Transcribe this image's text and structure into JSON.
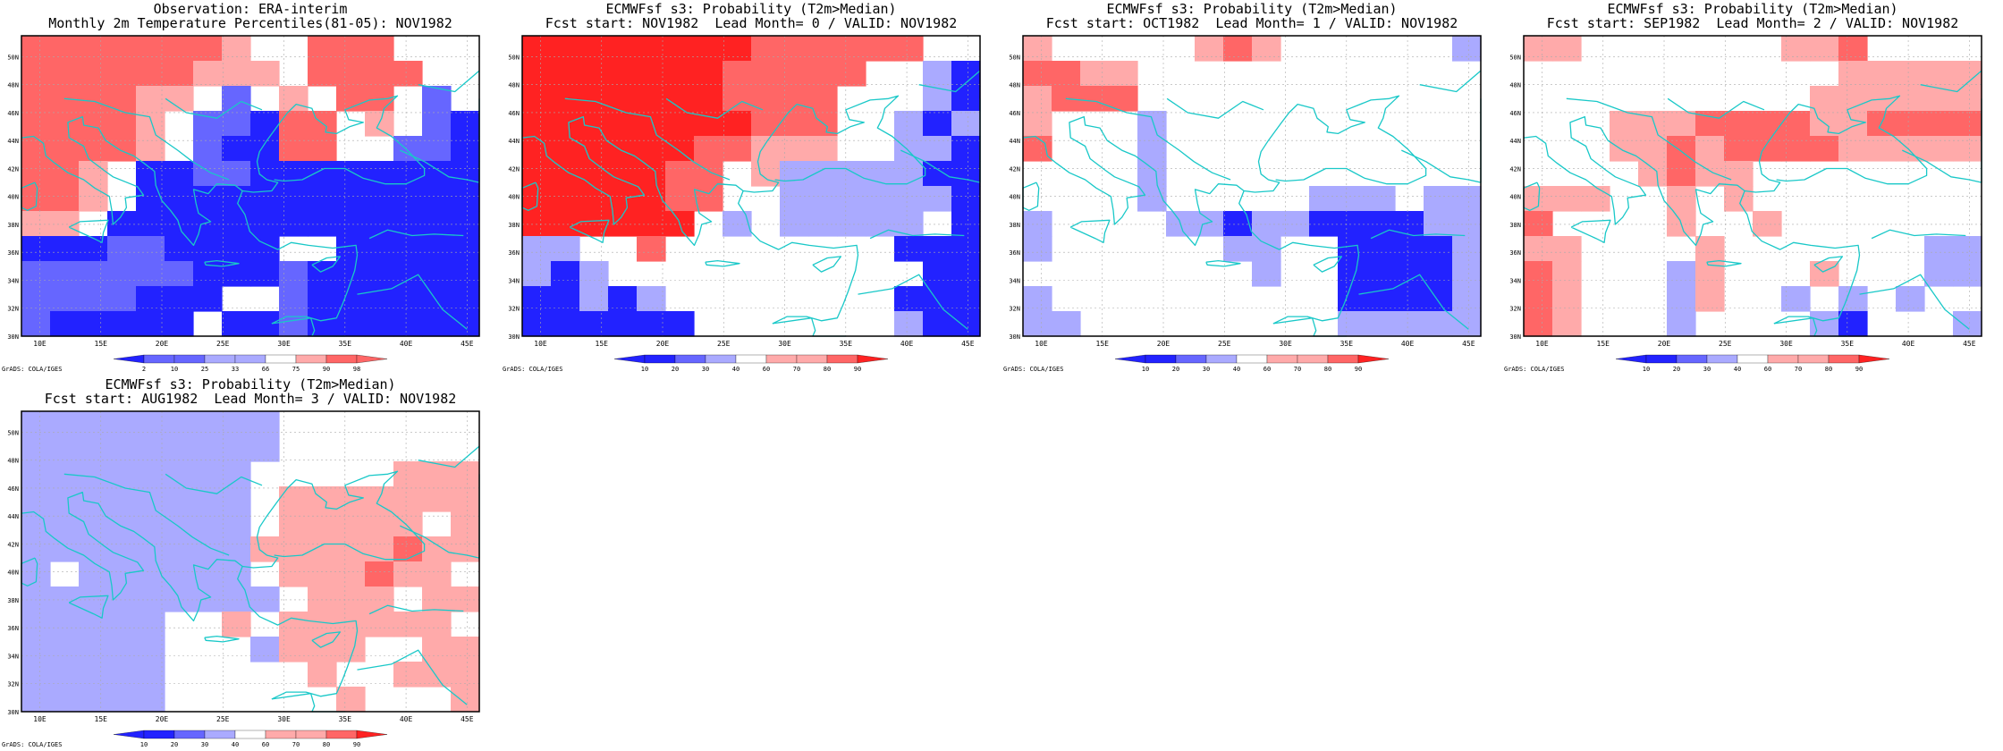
{
  "panels": [
    {
      "title1": "Observation: ERA-interim",
      "title2": "Monthly 2m Temperature Percentiles(81-05): NOV1982",
      "colorbar": {
        "labels": [
          "2",
          "10",
          "25",
          "33",
          "66",
          "75",
          "90",
          "98"
        ]
      },
      "credit": "GrADS: COLA/IGES",
      "grid": [
        "ooooooow..ooo...",
        "oooooowww.oooo..",
        "ooooww.b.w.oo.b.",
        "oooow.bbBoo.w.bB",
        "oooow.bBBoo..bbB",
        "oow.BBbbBBBBBBBB",
        "oow.BBBBBBBBBBBB",
        "ww.BBBBBBBBBBBBB",
        "BBBbbBBBB..BBBBB",
        "bbbbbbBBBbBBBBBB",
        "bbbbBBB..bBBBBBB",
        "bBBBBB.BBbBBBBBB"
      ]
    },
    {
      "title1": "ECMWFsf s3: Probability (T2m>Median)",
      "title2": "Fcst start: NOV1982  Lead Month= 0 / VALID: NOV1982",
      "colorbar": {
        "labels": [
          "10",
          "20",
          "30",
          "40",
          "60",
          "70",
          "80",
          "90"
        ]
      },
      "credit": "GrADS: COLA/IGES",
      "grid": [
        "RRRRRRRRoooooo..",
        "RRRRRRRooooo..bB",
        "RRRRRRRoooo...bB",
        "RRRRRRRRooo..bBb",
        "RRRRRRoowww..bbB",
        "RRRRRoo.wbbbbbBB",
        "RRRRRoo..bbbbbbB",
        "RRRRRR.b.bbbbb.B",
        "bb..o........BBB",
        "bBb...........BB",
        "BBbBb........BBB",
        "BBBBBB.......bBB"
      ]
    },
    {
      "title1": "ECMWFsf s3: Probability (T2m>Median)",
      "title2": "Fcst start: OCT1982  Lead Month= 1 / VALID: NOV1982",
      "colorbar": {
        "labels": [
          "10",
          "20",
          "30",
          "40",
          "60",
          "70",
          "80",
          "90"
        ]
      },
      "credit": "GrADS: COLA/IGES",
      "grid": [
        "w.....wow......b",
        "ooww............",
        "wooo............",
        "w...b...........",
        "o...b...........",
        "....b...........",
        "....b.....bbb.bb",
        "b....bbBbbBBBBbb",
        "b......bb..BBBBb",
        "........b..BBBBb",
        "b..........BBBBb",
        "bb.........bbbbb"
      ]
    },
    {
      "title1": "ECMWFsf s3: Probability (T2m>Median)",
      "title2": "Fcst start: SEP1982  Lead Month= 2 / VALID: NOV1982",
      "colorbar": {
        "labels": [
          "10",
          "20",
          "30",
          "40",
          "60",
          "70",
          "80",
          "90"
        ]
      },
      "credit": "GrADS: COLA/IGES",
      "grid": [
        "ww.......wwo....",
        "...........wwwww",
        "..........wwwwww",
        "...wwwoooowwoooo",
        "...wwowoooowwwww",
        "....woww........",
        "www..w.w........",
        "o....w..w.......",
        "ww....w.......bb",
        "ow...bw...w...bb",
        "ow...bw..b.b.b..",
        "ow...b....bB...b"
      ]
    },
    {
      "title1": "ECMWFsf s3: Probability (T2m>Median)",
      "title2": "Fcst start: AUG1982  Lead Month= 3 / VALID: NOV1982",
      "colorbar": {
        "labels": [
          "10",
          "20",
          "30",
          "40",
          "60",
          "70",
          "80",
          "90"
        ]
      },
      "credit": "GrADS: COLA/IGES",
      "grid": [
        "bbbbbbbbb.......",
        "bbbbbbbbb.......",
        "bbbbbbbb.....www",
        "bbbbbbbb.wwwwwww",
        "bbbbbbbb.wwwww.w",
        "bbbbbbbbwwwwwoww",
        "b.bbbbbb.wwwoww.",
        "bbbbbbbbb.www.ww",
        "bbbbb..w.wwwwww.",
        "bbbbb...bwww..ww",
        "bbbbb.....w..www",
        "bbbbb......w...w"
      ]
    }
  ],
  "lon_ticks": [
    "10E",
    "15E",
    "20E",
    "25E",
    "30E",
    "35E",
    "40E",
    "45E"
  ],
  "lat_ticks": [
    "30N",
    "32N",
    "34N",
    "36N",
    "38N",
    "40N",
    "42N",
    "44N",
    "46N",
    "48N",
    "50N"
  ],
  "colors": {
    "deep_blue": "#2222ff",
    "med_blue": "#6666ff",
    "light_blue": "#aaaaff",
    "light_red": "#ffaaaa",
    "med_red": "#ff6666",
    "deep_red": "#ff2222",
    "coastline": "#19c8c8",
    "frame": "#000000",
    "gridline": "#aaaaaa"
  }
}
